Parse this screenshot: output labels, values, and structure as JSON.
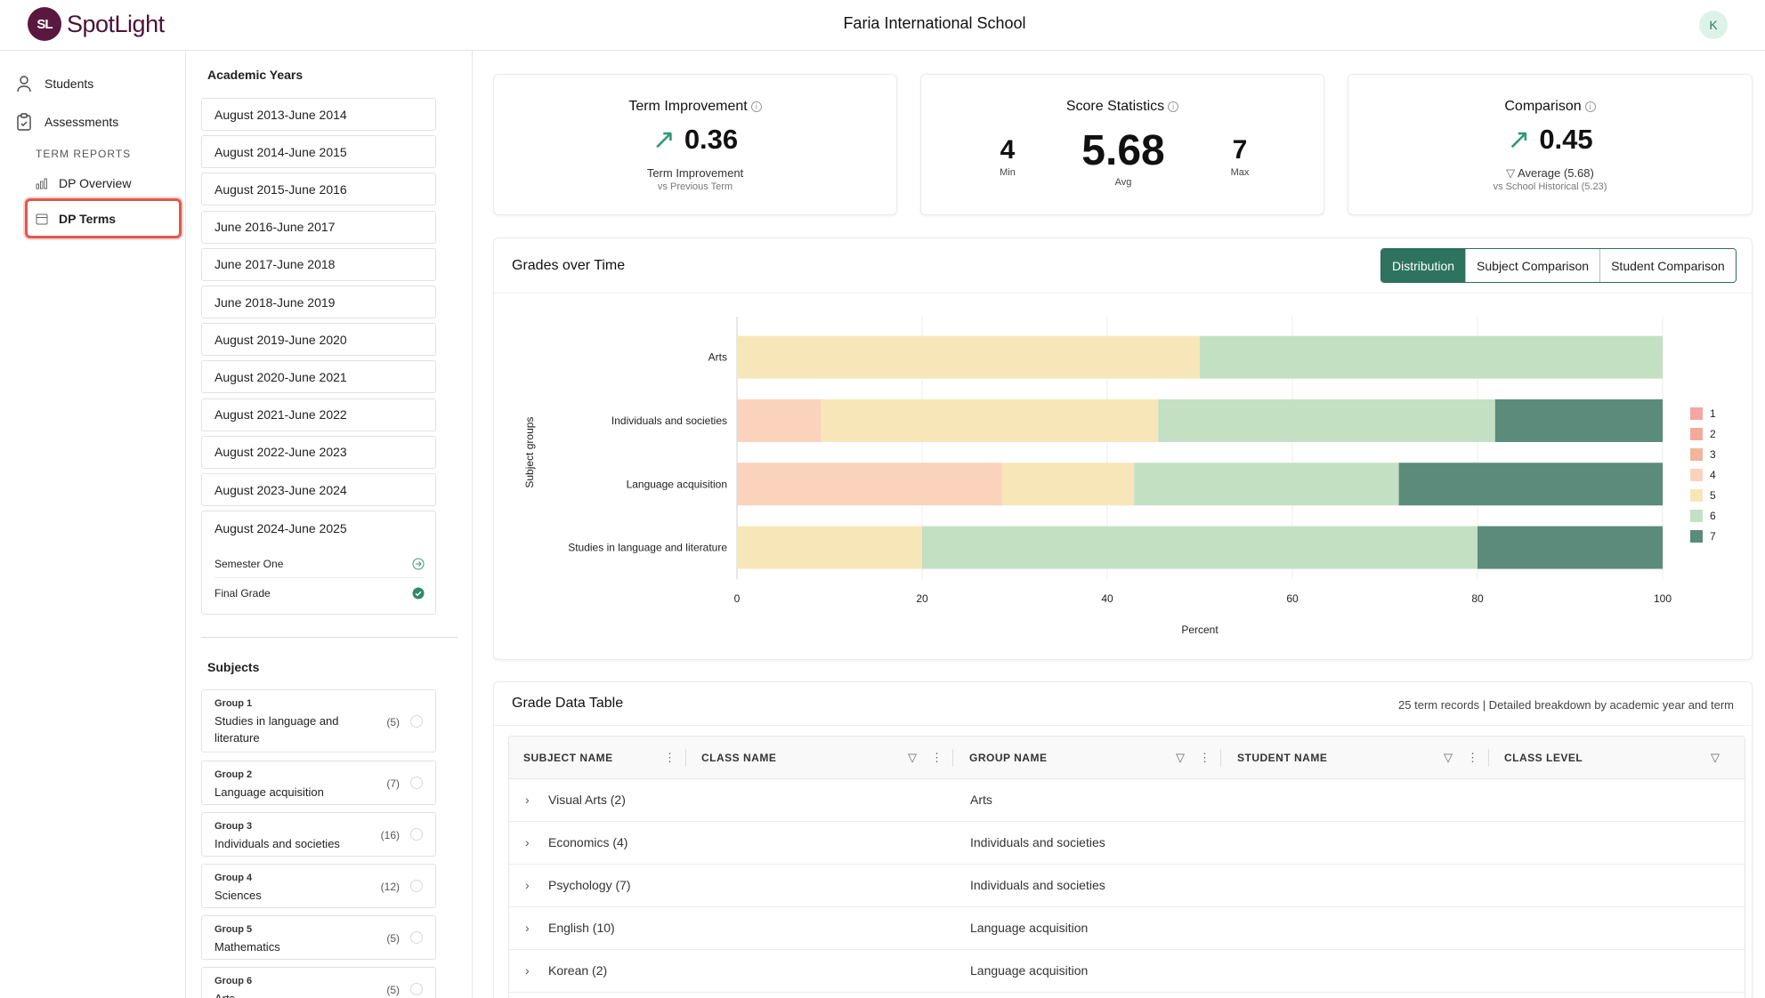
{
  "header": {
    "logo_initials": "SL",
    "app_name": "SpotLight",
    "school_name": "Faria International School",
    "user_initial": "K"
  },
  "nav": {
    "students": "Students",
    "assessments": "Assessments",
    "section_label": "TERM REPORTS",
    "dp_overview": "DP Overview",
    "dp_terms": "DP Terms"
  },
  "academic_years": {
    "heading": "Academic Years",
    "items": [
      "August 2013-June 2014",
      "August 2014-June 2015",
      "August 2015-June 2016",
      "June 2016-June 2017",
      "June 2017-June 2018",
      "June 2018-June 2019",
      "August 2019-June 2020",
      "August 2020-June 2021",
      "August 2021-June 2022",
      "August 2022-June 2023",
      "August 2023-June 2024"
    ],
    "expanded": {
      "label": "August 2024-June 2025",
      "terms": [
        "Semester One",
        "Final Grade"
      ]
    }
  },
  "subjects": {
    "heading": "Subjects",
    "items": [
      {
        "group": "Group 1",
        "name": "Studies in language and literature",
        "count": "(5)"
      },
      {
        "group": "Group 2",
        "name": "Language acquisition",
        "count": "(7)"
      },
      {
        "group": "Group 3",
        "name": "Individuals and societies",
        "count": "(16)"
      },
      {
        "group": "Group 4",
        "name": "Sciences",
        "count": "(12)"
      },
      {
        "group": "Group 5",
        "name": "Mathematics",
        "count": "(5)"
      },
      {
        "group": "Group 6",
        "name": "Arts",
        "count": "(5)"
      }
    ]
  },
  "stats": {
    "term_improvement": {
      "title": "Term Improvement",
      "value": "0.36",
      "label": "Term Improvement",
      "sublabel": "vs Previous Term"
    },
    "score_statistics": {
      "title": "Score Statistics",
      "min": "4",
      "min_label": "Min",
      "avg": "5.68",
      "avg_label": "Avg",
      "max": "7",
      "max_label": "Max"
    },
    "comparison": {
      "title": "Comparison",
      "value": "0.45",
      "label": "Average (5.68)",
      "sublabel": "vs School Historical (5.23)"
    }
  },
  "grades_chart": {
    "title": "Grades over Time",
    "tabs": [
      "Distribution",
      "Subject Comparison",
      "Student Comparison"
    ],
    "active_tab": "Distribution"
  },
  "chart_data": {
    "type": "bar",
    "orientation": "horizontal",
    "stacked": true,
    "categories": [
      "Arts",
      "Individuals and societies",
      "Language acquisition",
      "Studies in language and literature"
    ],
    "series": [
      {
        "name": "1",
        "color": "#f4a6a0",
        "values": [
          0,
          0,
          0,
          0
        ]
      },
      {
        "name": "2",
        "color": "#f2ab9a",
        "values": [
          0,
          0,
          0,
          0
        ]
      },
      {
        "name": "3",
        "color": "#f0b59b",
        "values": [
          0,
          0,
          0,
          0
        ]
      },
      {
        "name": "4",
        "color": "#fbd3bd",
        "values": [
          0,
          9.1,
          28.6,
          0
        ]
      },
      {
        "name": "5",
        "color": "#f7e6b8",
        "values": [
          50,
          36.4,
          14.3,
          20
        ]
      },
      {
        "name": "6",
        "color": "#c3e0c3",
        "values": [
          50,
          36.4,
          28.6,
          60
        ]
      },
      {
        "name": "7",
        "color": "#5b8b7a",
        "values": [
          0,
          18.1,
          28.5,
          20
        ]
      }
    ],
    "xlabel": "Percent",
    "ylabel": "Subject groups",
    "xlim": [
      0,
      100
    ],
    "xticks": [
      0,
      20,
      40,
      60,
      80,
      100
    ],
    "legend": "right",
    "grid": true
  },
  "table": {
    "title": "Grade Data Table",
    "meta": "25 term records | Detailed breakdown by academic year and term",
    "columns": [
      "SUBJECT NAME",
      "CLASS NAME",
      "GROUP NAME",
      "STUDENT NAME",
      "CLASS LEVEL"
    ],
    "rows": [
      {
        "subject": "Visual Arts (2)",
        "group": "Arts"
      },
      {
        "subject": "Economics (4)",
        "group": "Individuals and societies"
      },
      {
        "subject": "Psychology (7)",
        "group": "Individuals and societies"
      },
      {
        "subject": "English (10)",
        "group": "Language acquisition"
      },
      {
        "subject": "Korean (2)",
        "group": "Language acquisition"
      }
    ]
  }
}
